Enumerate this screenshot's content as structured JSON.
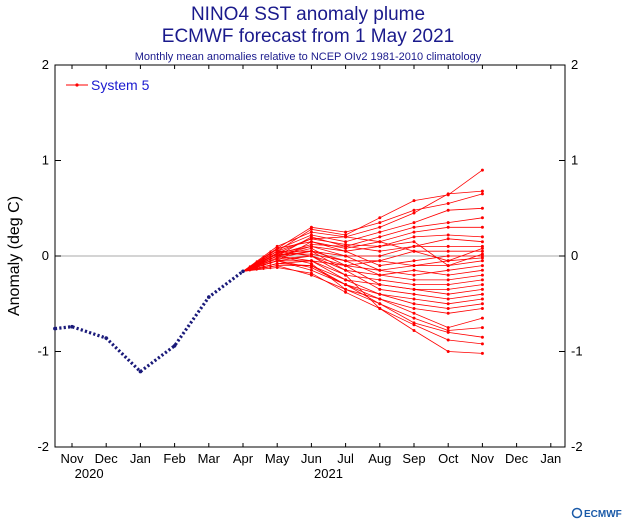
{
  "chart_data": {
    "type": "line",
    "title": "NINO4 SST anomaly plume",
    "title2": "ECMWF forecast from 1 May 2021",
    "subtitle": "Monthly mean anomalies relative to NCEP OIv2 1981-2010 climatology",
    "ylabel": "Anomaly (deg C)",
    "ylim": [
      -2,
      2
    ],
    "yticks": [
      "-2",
      "-1",
      "0",
      "1",
      "2"
    ],
    "x_month_labels": [
      "Nov",
      "Dec",
      "Jan",
      "Feb",
      "Mar",
      "Apr",
      "May",
      "Jun",
      "Jul",
      "Aug",
      "Sep",
      "Oct",
      "Nov",
      "Dec",
      "Jan"
    ],
    "x_year_labels": [
      {
        "label": "2020",
        "month_index": 0.5
      },
      {
        "label": "2021",
        "month_index": 7.5
      }
    ],
    "grid": false,
    "zero_line": true,
    "legend": {
      "position": "top-left",
      "entries": [
        "System 5"
      ]
    },
    "observed": {
      "color": "#1a1a7a",
      "points": [
        [
          -0.5,
          -0.76
        ],
        [
          0,
          -0.74
        ],
        [
          1,
          -0.86
        ],
        [
          2,
          -1.21
        ],
        [
          3,
          -0.94
        ],
        [
          4,
          -0.43
        ],
        [
          5,
          -0.16
        ]
      ]
    },
    "forecast": {
      "color": "#ff0000",
      "start": [
        5,
        -0.16
      ],
      "months": [
        6,
        7,
        8,
        9,
        10,
        11,
        12
      ],
      "members": [
        [
          0.05,
          0.28,
          0.22,
          0.4,
          0.58,
          0.64,
          0.9
        ],
        [
          0.1,
          0.25,
          0.2,
          0.3,
          0.45,
          0.65,
          0.68
        ],
        [
          0.08,
          0.3,
          0.25,
          0.35,
          0.48,
          0.55,
          0.65
        ],
        [
          0.07,
          0.22,
          0.15,
          0.25,
          0.35,
          0.48,
          0.5
        ],
        [
          0.0,
          0.2,
          0.1,
          0.2,
          0.3,
          0.35,
          0.4
        ],
        [
          0.05,
          0.18,
          0.2,
          0.15,
          0.25,
          0.3,
          0.3
        ],
        [
          -0.05,
          0.15,
          0.05,
          0.1,
          0.2,
          0.22,
          0.2
        ],
        [
          0.02,
          0.12,
          0.1,
          0.05,
          0.1,
          0.18,
          0.15
        ],
        [
          0.0,
          0.1,
          0.0,
          0.0,
          0.1,
          0.1,
          0.1
        ],
        [
          -0.02,
          0.05,
          -0.05,
          -0.05,
          0.05,
          0.05,
          0.05
        ],
        [
          0.03,
          0.1,
          0.05,
          -0.1,
          -0.05,
          0.0,
          0.0
        ],
        [
          -0.05,
          0.0,
          -0.1,
          -0.05,
          -0.1,
          -0.05,
          -0.02
        ],
        [
          0.0,
          0.05,
          0.0,
          -0.15,
          -0.1,
          -0.1,
          -0.05
        ],
        [
          -0.08,
          -0.05,
          -0.1,
          -0.15,
          -0.2,
          -0.15,
          -0.1
        ],
        [
          0.02,
          0.02,
          -0.05,
          -0.2,
          -0.15,
          -0.2,
          -0.15
        ],
        [
          -0.03,
          0.0,
          -0.15,
          -0.2,
          -0.25,
          -0.25,
          -0.2
        ],
        [
          -0.05,
          -0.05,
          -0.2,
          -0.25,
          -0.3,
          -0.3,
          -0.25
        ],
        [
          0.0,
          0.08,
          -0.1,
          -0.3,
          -0.35,
          -0.35,
          -0.3
        ],
        [
          -0.1,
          -0.1,
          -0.25,
          -0.3,
          -0.35,
          -0.4,
          -0.35
        ],
        [
          0.05,
          0.05,
          -0.15,
          -0.35,
          -0.4,
          -0.45,
          -0.4
        ],
        [
          -0.05,
          -0.15,
          -0.3,
          -0.4,
          -0.45,
          -0.5,
          -0.45
        ],
        [
          0.0,
          -0.05,
          -0.25,
          -0.4,
          -0.5,
          -0.55,
          -0.5
        ],
        [
          -0.08,
          -0.1,
          -0.3,
          -0.45,
          -0.55,
          -0.6,
          -0.55
        ],
        [
          0.0,
          -0.08,
          -0.35,
          -0.45,
          -0.6,
          -0.75,
          -0.65
        ],
        [
          -0.05,
          -0.12,
          -0.3,
          -0.5,
          -0.65,
          -0.78,
          -0.75
        ],
        [
          -0.1,
          -0.2,
          -0.35,
          -0.5,
          -0.7,
          -0.8,
          -0.85
        ],
        [
          0.05,
          0.0,
          -0.2,
          -0.55,
          -0.72,
          -0.88,
          -0.92
        ],
        [
          -0.12,
          -0.18,
          -0.38,
          -0.55,
          -0.78,
          -1.0,
          -1.02
        ],
        [
          0.08,
          0.15,
          0.08,
          0.15,
          0.05,
          -0.05,
          0.08
        ],
        [
          0.03,
          0.18,
          0.12,
          0.1,
          0.15,
          -0.1,
          0.02
        ]
      ]
    }
  },
  "legend_label": "System 5",
  "logo_text": "ECMWF"
}
